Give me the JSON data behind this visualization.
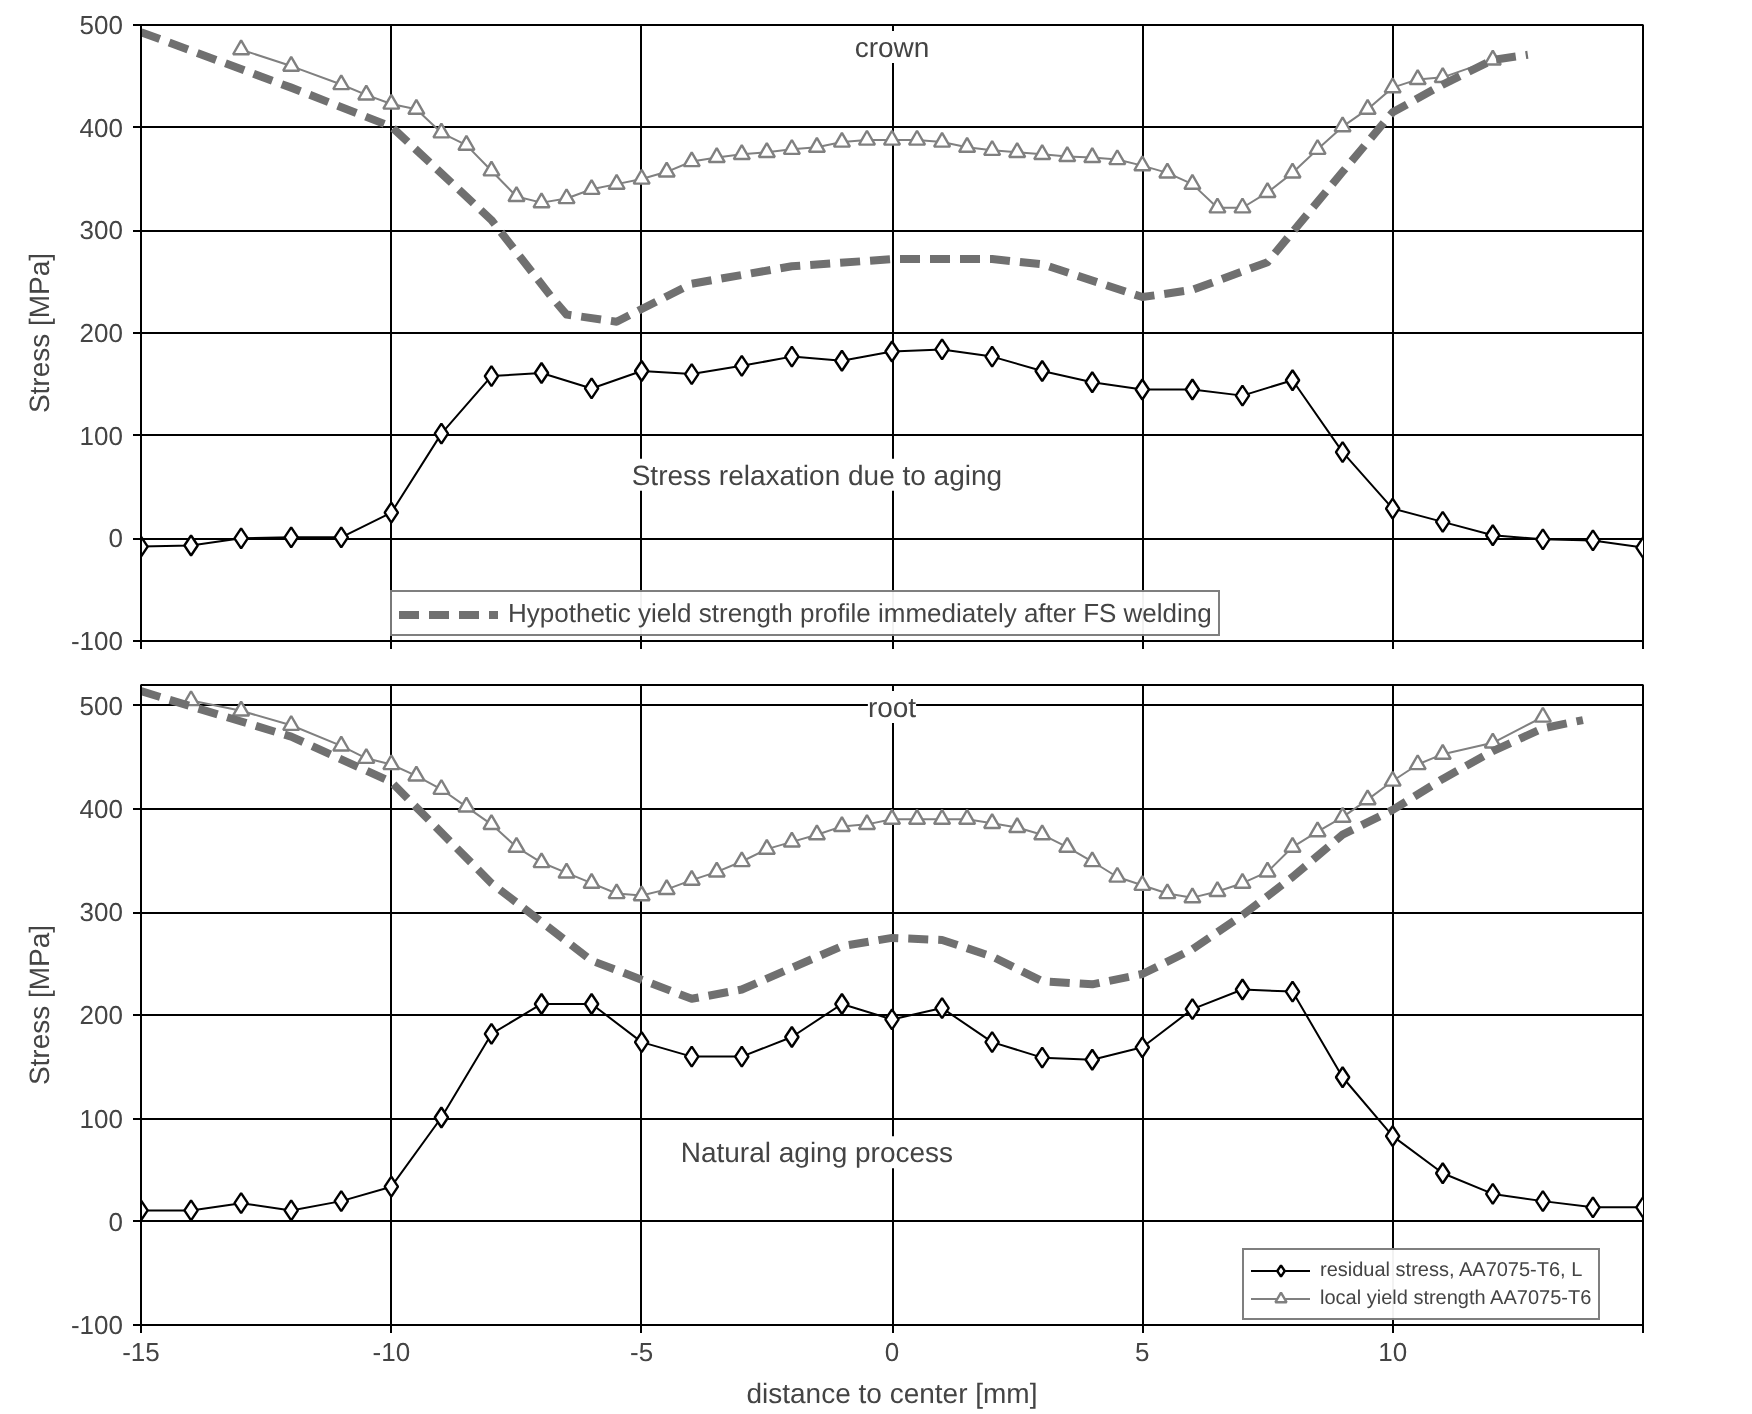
{
  "chart_data": [
    {
      "type": "line",
      "title": "crown",
      "ylabel": "Stress [MPa]",
      "xlim": [
        -15,
        15
      ],
      "xticks": [
        -15,
        -10,
        -5,
        0,
        5,
        10,
        {
          "value": 15,
          "label": null
        }
      ],
      "ylim": [
        -100,
        500
      ],
      "yticks": [
        -100,
        0,
        100,
        200,
        300,
        400,
        500
      ],
      "grid": true,
      "tick_labels": "y",
      "legend": "bottom",
      "annotations": [
        "Stress relaxation due to aging"
      ],
      "series": [
        {
          "color": "#000000",
          "marker": "diamond",
          "x": [
            -15,
            -14,
            -13,
            -12,
            -11,
            -10,
            -9,
            -8,
            -7,
            -6,
            -5,
            -4,
            -3,
            -2,
            -1,
            0,
            1,
            2,
            3,
            4,
            5,
            6,
            7,
            8,
            9,
            10,
            11,
            12,
            13,
            14,
            15
          ],
          "values": [
            -8,
            -7,
            0,
            1,
            1,
            25,
            102,
            158,
            161,
            146,
            163,
            160,
            168,
            177,
            173,
            182,
            184,
            177,
            163,
            152,
            145,
            145,
            139,
            154,
            84,
            29,
            16,
            3,
            -1,
            -2,
            -9
          ]
        },
        {
          "color": "#808080",
          "marker": "triangle",
          "x": [
            -13,
            -12,
            -11,
            -10.5,
            -10,
            -9.5,
            -9,
            -8.5,
            -8,
            -7.5,
            -7,
            -6.5,
            -6,
            -5.5,
            -5,
            -4.5,
            -4,
            -3.5,
            -3,
            -2.5,
            -2,
            -1.5,
            -1,
            -0.5,
            0,
            0.5,
            1,
            1.5,
            2,
            2.5,
            3,
            3.5,
            4,
            4.5,
            5,
            5.5,
            6,
            6.5,
            7,
            7.5,
            8,
            8.5,
            9,
            9.5,
            10,
            10.5,
            11,
            12
          ],
          "values": [
            476,
            460,
            442,
            432,
            423,
            418,
            395,
            383,
            358,
            333,
            327,
            331,
            340,
            345,
            350,
            357,
            367,
            371,
            374,
            376,
            379,
            381,
            386,
            388,
            388,
            388,
            386,
            381,
            378,
            376,
            374,
            372,
            371,
            369,
            363,
            356,
            345,
            322,
            322,
            337,
            356,
            379,
            401,
            418,
            439,
            447,
            449,
            466
          ]
        },
        {
          "name": "Hypothetic yield strength profile immediately after FS welding",
          "color": "#707070",
          "marker": "none",
          "line_style": "dashed",
          "x": [
            -15,
            -12,
            -10,
            -8,
            -6.8,
            -6.5,
            -5.5,
            -4,
            -2,
            0,
            2,
            3,
            5,
            6,
            7.5,
            9,
            10,
            11,
            12,
            12.7
          ],
          "values": [
            493,
            439,
            401,
            310,
            235,
            218,
            211,
            248,
            265,
            272,
            272,
            267,
            235,
            242,
            269,
            357,
            415,
            442,
            466,
            471
          ]
        }
      ]
    },
    {
      "type": "line",
      "title": "root",
      "xlabel": "distance to center [mm]",
      "ylabel": "Stress [MPa]",
      "xlim": [
        -15,
        15
      ],
      "xticks": [
        -15,
        -10,
        -5,
        0,
        5,
        10,
        {
          "value": 15,
          "label": null
        }
      ],
      "ylim": [
        -100,
        520
      ],
      "yticks": [
        -100,
        0,
        100,
        200,
        300,
        400,
        500
      ],
      "grid": true,
      "legend": "bottom right",
      "annotations": [
        "Natural aging process"
      ],
      "series": [
        {
          "name": "residual stress, AA7075-T6, L",
          "color": "#000000",
          "marker": "diamond",
          "x": [
            -15,
            -14,
            -13,
            -12,
            -11,
            -10,
            -9,
            -8,
            -7,
            -6,
            -5,
            -4,
            -3,
            -2,
            -1,
            0,
            1,
            2,
            3,
            4,
            5,
            6,
            7,
            8,
            9,
            10,
            11,
            12,
            13,
            14,
            15
          ],
          "values": [
            11,
            11,
            18,
            11,
            20,
            34,
            101,
            182,
            211,
            211,
            174,
            160,
            160,
            179,
            211,
            196,
            207,
            174,
            159,
            157,
            169,
            206,
            225,
            223,
            140,
            83,
            47,
            27,
            20,
            14,
            14
          ]
        },
        {
          "name": "local yield strength AA7075-T6",
          "color": "#808080",
          "marker": "triangle",
          "x": [
            -14,
            -13,
            -12,
            -11,
            -10.5,
            -10,
            -9.5,
            -9,
            -8.5,
            -8,
            -7.5,
            -7,
            -6.5,
            -6,
            -5.5,
            -5,
            -4.5,
            -4,
            -3.5,
            -3,
            -2.5,
            -2,
            -1.5,
            -1,
            -0.5,
            0,
            0.5,
            1,
            1.5,
            2,
            2.5,
            3,
            3.5,
            4,
            4.5,
            5,
            5.5,
            6,
            6.5,
            7,
            7.5,
            8,
            8.5,
            9,
            9.5,
            10,
            10.5,
            11,
            12,
            13
          ],
          "values": [
            505,
            495,
            481,
            461,
            449,
            443,
            432,
            419,
            402,
            385,
            363,
            348,
            338,
            328,
            318,
            316,
            322,
            331,
            339,
            349,
            361,
            368,
            375,
            383,
            385,
            390,
            390,
            390,
            390,
            386,
            382,
            375,
            363,
            349,
            334,
            326,
            318,
            314,
            320,
            328,
            339,
            363,
            378,
            392,
            409,
            427,
            443,
            453,
            464,
            489
          ]
        },
        {
          "color": "#707070",
          "marker": "none",
          "line_style": "dashed",
          "x": [
            -15,
            -12,
            -10,
            -8,
            -6,
            -4,
            -3,
            -1,
            0,
            1,
            2,
            3,
            4,
            5,
            6,
            7,
            8,
            9,
            10,
            11,
            12,
            13,
            13.8
          ],
          "values": [
            514,
            470,
            426,
            328,
            253,
            216,
            225,
            267,
            275,
            273,
            257,
            233,
            230,
            240,
            264,
            297,
            334,
            375,
            399,
            429,
            456,
            478,
            486
          ]
        }
      ]
    }
  ]
}
